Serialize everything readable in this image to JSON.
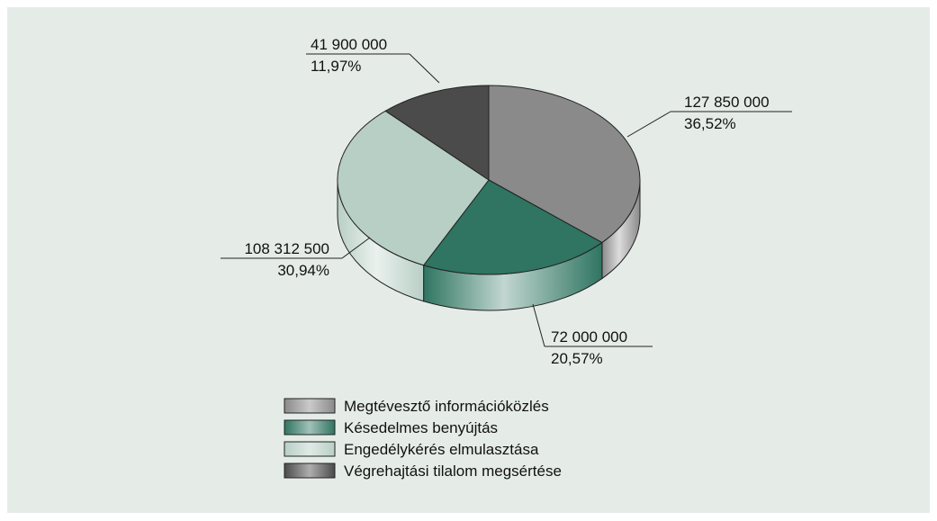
{
  "chart_data": {
    "type": "pie3d",
    "categories": [
      "Megtévesztő információközlés",
      "Késedelmes benyújtás",
      "Engedélykérés elmulasztása",
      "Végrehajtási tilalom megsértése"
    ],
    "values": [
      127850000,
      72000000,
      108312500,
      41900000
    ],
    "value_labels": [
      "127 850 000",
      "72 000 000",
      "108 312 500",
      "41 900 000"
    ],
    "percents": [
      36.52,
      20.57,
      30.94,
      11.97
    ],
    "percent_labels": [
      "36,52%",
      "20,57%",
      "30,94%",
      "11,97%"
    ],
    "colors": [
      "#8a8a8a",
      "#2f7561",
      "#b8cfc6",
      "#4b4b4b"
    ],
    "legend": "bottom"
  }
}
